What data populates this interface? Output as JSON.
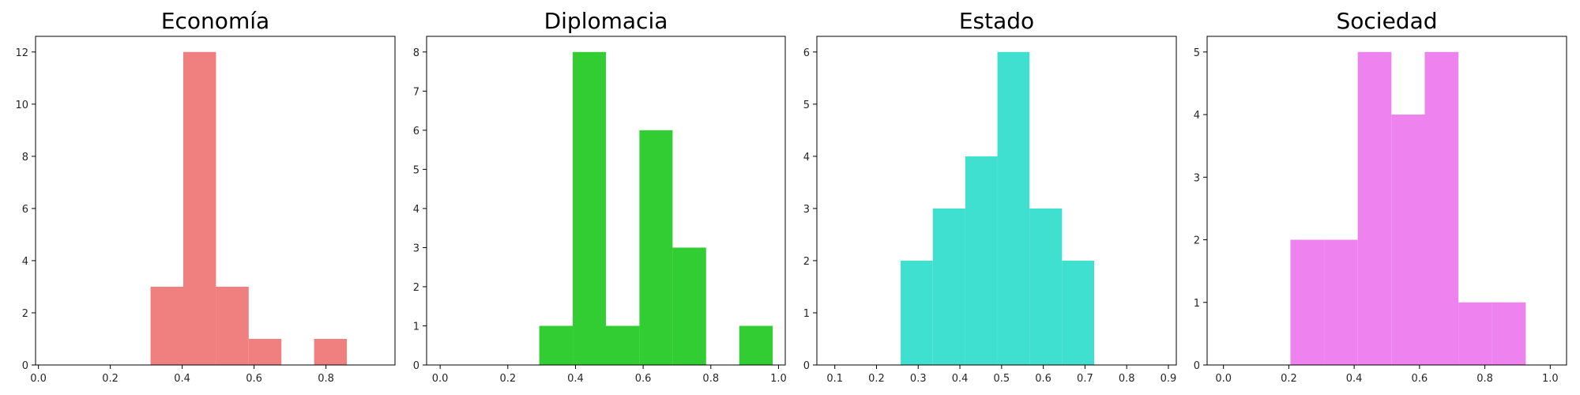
{
  "chart_data": [
    {
      "type": "bar",
      "title": "Economía",
      "color": "#f08080",
      "xlim": [
        -0.008,
        0.992
      ],
      "ylim": [
        0,
        12.6
      ],
      "xticks": [
        "0.0",
        "0.2",
        "0.4",
        "0.6",
        "0.8"
      ],
      "yticks": [
        "0",
        "2",
        "4",
        "6",
        "8",
        "10",
        "12"
      ],
      "bins": [
        {
          "x0": 0.312,
          "x1": 0.403,
          "count": 3
        },
        {
          "x0": 0.403,
          "x1": 0.494,
          "count": 12
        },
        {
          "x0": 0.494,
          "x1": 0.585,
          "count": 3
        },
        {
          "x0": 0.585,
          "x1": 0.676,
          "count": 1
        },
        {
          "x0": 0.676,
          "x1": 0.767,
          "count": 0
        },
        {
          "x0": 0.767,
          "x1": 0.858,
          "count": 1
        }
      ]
    },
    {
      "type": "bar",
      "title": "Diplomacia",
      "color": "#32cd32",
      "xlim": [
        -0.04,
        1.02
      ],
      "ylim": [
        0,
        8.4
      ],
      "xticks": [
        "0.0",
        "0.2",
        "0.4",
        "0.6",
        "0.8",
        "1.0"
      ],
      "yticks": [
        "0",
        "1",
        "2",
        "3",
        "4",
        "5",
        "6",
        "7",
        "8"
      ],
      "bins": [
        {
          "x0": 0.293,
          "x1": 0.392,
          "count": 1
        },
        {
          "x0": 0.392,
          "x1": 0.49,
          "count": 8
        },
        {
          "x0": 0.49,
          "x1": 0.589,
          "count": 1
        },
        {
          "x0": 0.589,
          "x1": 0.687,
          "count": 6
        },
        {
          "x0": 0.687,
          "x1": 0.786,
          "count": 3
        },
        {
          "x0": 0.786,
          "x1": 0.884,
          "count": 0
        },
        {
          "x0": 0.884,
          "x1": 0.983,
          "count": 1
        }
      ]
    },
    {
      "type": "bar",
      "title": "Estado",
      "color": "#40e0d0",
      "xlim": [
        0.057,
        0.919
      ],
      "ylim": [
        0,
        6.3
      ],
      "xticks": [
        "0.1",
        "0.2",
        "0.3",
        "0.4",
        "0.5",
        "0.6",
        "0.7",
        "0.8",
        "0.9"
      ],
      "yticks": [
        "0",
        "1",
        "2",
        "3",
        "4",
        "5",
        "6"
      ],
      "bins": [
        {
          "x0": 0.258,
          "x1": 0.335,
          "count": 2
        },
        {
          "x0": 0.335,
          "x1": 0.413,
          "count": 3
        },
        {
          "x0": 0.413,
          "x1": 0.49,
          "count": 4
        },
        {
          "x0": 0.49,
          "x1": 0.567,
          "count": 6
        },
        {
          "x0": 0.567,
          "x1": 0.645,
          "count": 3
        },
        {
          "x0": 0.645,
          "x1": 0.722,
          "count": 2
        }
      ]
    },
    {
      "type": "bar",
      "title": "Sociedad",
      "color": "#ee82ee",
      "xlim": [
        -0.05,
        1.05
      ],
      "ylim": [
        0,
        5.25
      ],
      "xticks": [
        "0.0",
        "0.2",
        "0.4",
        "0.6",
        "0.8",
        "1.0"
      ],
      "yticks": [
        "0",
        "1",
        "2",
        "3",
        "4",
        "5"
      ],
      "bins": [
        {
          "x0": 0.205,
          "x1": 0.308,
          "count": 2
        },
        {
          "x0": 0.308,
          "x1": 0.411,
          "count": 2
        },
        {
          "x0": 0.411,
          "x1": 0.514,
          "count": 5
        },
        {
          "x0": 0.514,
          "x1": 0.616,
          "count": 4
        },
        {
          "x0": 0.616,
          "x1": 0.719,
          "count": 5
        },
        {
          "x0": 0.719,
          "x1": 0.822,
          "count": 1
        },
        {
          "x0": 0.822,
          "x1": 0.925,
          "count": 1
        }
      ]
    }
  ]
}
